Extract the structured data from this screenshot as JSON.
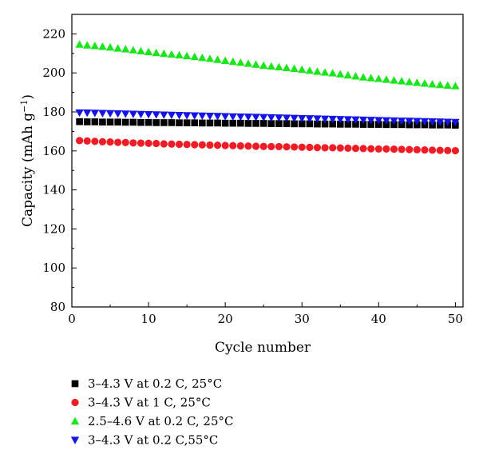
{
  "chart_data": {
    "type": "scatter",
    "xlabel": "Cycle number",
    "ylabel": "Capacity (mAh g",
    "ylabel_sup": "−1",
    "ylabel_close": ")",
    "xlim": [
      0,
      51
    ],
    "ylim": [
      80,
      230
    ],
    "xticks": [
      0,
      10,
      20,
      30,
      40,
      50
    ],
    "yticks": [
      80,
      100,
      120,
      140,
      160,
      180,
      200,
      220
    ],
    "grid": false,
    "legend_position": "bottom",
    "x": [
      1,
      2,
      3,
      4,
      5,
      6,
      7,
      8,
      9,
      10,
      11,
      12,
      13,
      14,
      15,
      16,
      17,
      18,
      19,
      20,
      21,
      22,
      23,
      24,
      25,
      26,
      27,
      28,
      29,
      30,
      31,
      32,
      33,
      34,
      35,
      36,
      37,
      38,
      39,
      40,
      41,
      42,
      43,
      44,
      45,
      46,
      47,
      48,
      49,
      50
    ],
    "series": [
      {
        "name": "3–4.3 V at 0.2 C, 25°C",
        "marker": "square",
        "color": "#000000",
        "values": [
          175.0,
          174.9,
          174.9,
          174.8,
          174.8,
          174.8,
          174.7,
          174.7,
          174.6,
          174.6,
          174.5,
          174.5,
          174.5,
          174.4,
          174.4,
          174.4,
          174.3,
          174.3,
          174.3,
          174.2,
          174.2,
          174.2,
          174.1,
          174.1,
          174.1,
          174.0,
          174.0,
          174.0,
          173.9,
          173.9,
          173.9,
          173.8,
          173.8,
          173.8,
          173.7,
          173.7,
          173.7,
          173.6,
          173.6,
          173.6,
          173.5,
          173.5,
          173.5,
          173.4,
          173.4,
          173.4,
          173.3,
          173.3,
          173.3,
          173.2
        ]
      },
      {
        "name": "3–4.3 V at 1 C, 25°C",
        "marker": "circle",
        "color": "#ee1c24",
        "values": [
          165.3,
          165.1,
          164.9,
          164.7,
          164.6,
          164.4,
          164.3,
          164.1,
          164.0,
          163.9,
          163.8,
          163.6,
          163.5,
          163.4,
          163.3,
          163.2,
          163.1,
          163.0,
          162.9,
          162.8,
          162.7,
          162.6,
          162.5,
          162.4,
          162.3,
          162.2,
          162.2,
          162.1,
          162.0,
          161.9,
          161.8,
          161.7,
          161.6,
          161.6,
          161.5,
          161.4,
          161.3,
          161.2,
          161.1,
          161.0,
          161.0,
          160.9,
          160.8,
          160.7,
          160.6,
          160.5,
          160.4,
          160.3,
          160.2,
          160.1
        ]
      },
      {
        "name": "2.5–4.6 V at 0.2 C, 25°C",
        "marker": "triangle-up",
        "color": "#1de51d",
        "values": [
          214.6,
          214.2,
          213.9,
          213.5,
          213.1,
          212.6,
          212.2,
          211.7,
          211.2,
          210.8,
          210.3,
          209.9,
          209.5,
          209.1,
          208.7,
          208.3,
          207.8,
          207.3,
          206.8,
          206.3,
          205.8,
          205.3,
          204.8,
          204.3,
          203.8,
          203.4,
          203.0,
          202.6,
          202.2,
          201.7,
          201.2,
          200.7,
          200.3,
          199.9,
          199.4,
          198.8,
          198.3,
          197.8,
          197.4,
          197.0,
          196.6,
          196.2,
          195.8,
          195.4,
          195.0,
          194.6,
          194.2,
          193.9,
          193.6,
          193.3
        ]
      },
      {
        "name": "3–4.3 V at 0.2 C,55°C",
        "marker": "triangle-down",
        "color": "#1414e6",
        "values": [
          179.6,
          179.5,
          179.4,
          179.3,
          179.2,
          179.1,
          179.0,
          178.9,
          178.8,
          178.7,
          178.6,
          178.5,
          178.4,
          178.3,
          178.2,
          178.1,
          178.0,
          177.9,
          177.8,
          177.7,
          177.6,
          177.5,
          177.4,
          177.3,
          177.2,
          177.1,
          177.0,
          176.9,
          176.8,
          176.7,
          176.6,
          176.5,
          176.4,
          176.3,
          176.2,
          176.1,
          176.0,
          175.9,
          175.8,
          175.7,
          175.6,
          175.5,
          175.4,
          175.3,
          175.2,
          175.1,
          175.0,
          174.9,
          174.8,
          174.7
        ]
      }
    ]
  }
}
